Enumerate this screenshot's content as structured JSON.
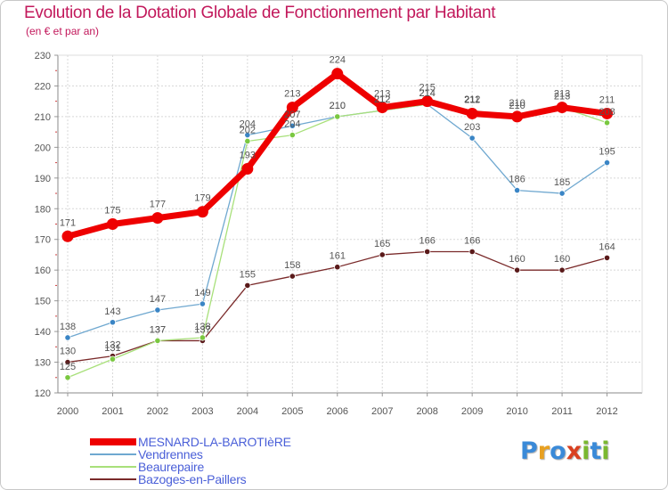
{
  "title": "Evolution de la Dotation Globale de Fonctionnement par Habitant",
  "subtitle": "(en € et par an)",
  "logo": {
    "text": "Proxiti",
    "letters": [
      "P",
      "r",
      "o",
      "x",
      "i",
      "t",
      "i"
    ],
    "colors": [
      "#3a8ad8",
      "#e8a020",
      "#3a8ad8",
      "#d94020",
      "#7ab830",
      "#3a8ad8",
      "#7ab830"
    ]
  },
  "chart_data": {
    "type": "line",
    "title": "Evolution de la Dotation Globale de Fonctionnement par Habitant",
    "subtitle": "(en € et par an)",
    "xlabel": "",
    "ylabel": "",
    "x": [
      "2000",
      "2001",
      "2002",
      "2003",
      "2004",
      "2005",
      "2006",
      "2007",
      "2008",
      "2009",
      "2010",
      "2011",
      "2012"
    ],
    "ylim": [
      120,
      230
    ],
    "yticks": [
      120,
      130,
      140,
      150,
      160,
      170,
      180,
      190,
      200,
      210,
      220,
      230
    ],
    "grid": true,
    "legend_position": "bottom-left",
    "series": [
      {
        "name": "MESNARD-LA-BAROTIèRE",
        "color": "#ee0000",
        "marker": "#ee0000",
        "width": 7,
        "radius": 6,
        "values": [
          171,
          175,
          177,
          179,
          193,
          213,
          224,
          213,
          215,
          211,
          210,
          213,
          211
        ],
        "labels": [
          "171",
          "175",
          "177",
          "179",
          "193",
          "213",
          "224",
          "213",
          "215",
          "211",
          "210",
          "213",
          "211"
        ]
      },
      {
        "name": "Vendrennes",
        "color": "#6fa8d0",
        "marker": "#3a85c5",
        "width": 1.3,
        "radius": 3.2,
        "values": [
          138,
          143,
          147,
          149,
          204,
          207,
          210,
          212,
          214,
          203,
          186,
          185,
          195
        ],
        "labels": [
          "138",
          "143",
          "147",
          "149",
          "204",
          "207",
          "210",
          "212",
          "214",
          "203",
          "186",
          "185",
          "195"
        ]
      },
      {
        "name": "Beaurepaire",
        "color": "#a8e07a",
        "marker": "#7ac840",
        "width": 1.3,
        "radius": 3.2,
        "values": [
          125,
          131,
          137,
          138,
          202,
          204,
          210,
          212,
          214,
          212,
          210,
          213,
          208
        ],
        "labels": [
          "125",
          "131",
          "137",
          "138",
          "202",
          "204",
          "210",
          "212",
          "214",
          "212",
          "210",
          "213",
          "208"
        ]
      },
      {
        "name": "Bazoges-en-Paillers",
        "color": "#7a2a2a",
        "marker": "#5a1a1a",
        "width": 1.3,
        "radius": 3.2,
        "values": [
          130,
          132,
          137,
          137,
          155,
          158,
          161,
          165,
          166,
          166,
          160,
          160,
          164
        ],
        "labels": [
          "130",
          "132",
          "137",
          "137",
          "155",
          "158",
          "161",
          "165",
          "166",
          "166",
          "160",
          "160",
          "164"
        ]
      }
    ]
  }
}
